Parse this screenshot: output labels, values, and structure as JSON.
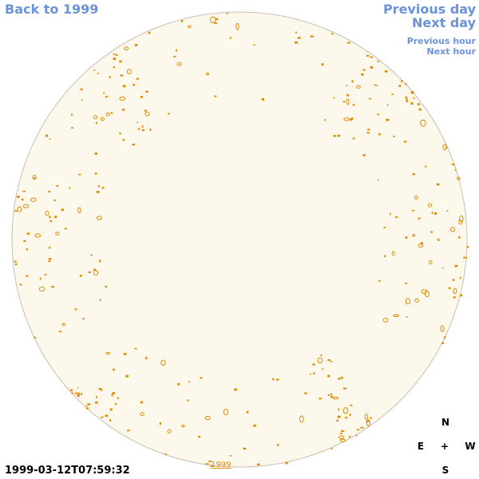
{
  "nav": {
    "back": "Back to 1999",
    "previous_day": "Previous day",
    "next_day": "Next day",
    "previous_hour": "Previous hour",
    "next_hour": "Next hour"
  },
  "timestamp": "1999-03-12T07:59:32",
  "year_link": "1999",
  "compass": {
    "north": "N",
    "south": "S",
    "east": "E",
    "west": "W",
    "center": "+"
  }
}
